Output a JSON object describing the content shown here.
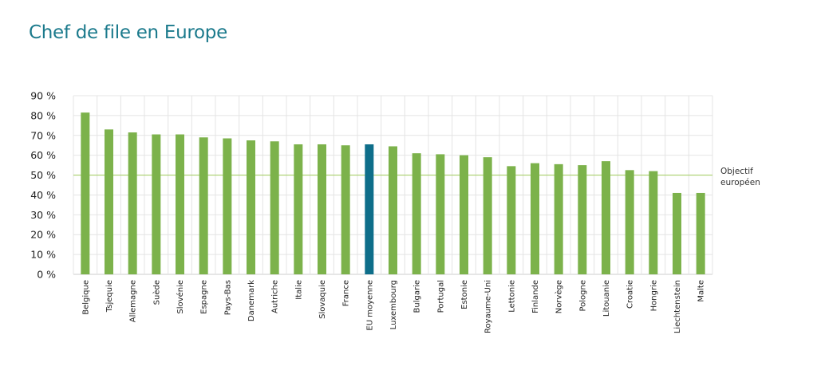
{
  "colors": {
    "title": "#1b7a8c",
    "bar": "#7cb24b",
    "highlight": "#0e6e8a",
    "target_line": "#a9cf6c",
    "grid": "#e4e4e4",
    "axis": "#cccccc"
  },
  "chart_data": {
    "type": "bar",
    "title": "Chef de file en Europe",
    "xlabel": "",
    "ylabel": "",
    "ylim": [
      0,
      90
    ],
    "y_ticks": [
      "0 %",
      "10 %",
      "20 %",
      "30 %",
      "40 %",
      "50 %",
      "60 %",
      "70 %",
      "80 %",
      "90 %"
    ],
    "y_tick_values": [
      0,
      10,
      20,
      30,
      40,
      50,
      60,
      70,
      80,
      90
    ],
    "grid": true,
    "categories": [
      "Belgique",
      "Tsjequie",
      "Allemagne",
      "Suède",
      "Slovénie",
      "Espagne",
      "Pays-Bas",
      "Danemark",
      "Autriche",
      "Italie",
      "Slovaquie",
      "France",
      "EU moyenne",
      "Luxembourg",
      "Bulgarie",
      "Portugal",
      "Estonie",
      "Royaume-Uni",
      "Lettonie",
      "Finlande",
      "Norvège",
      "Pologne",
      "Litouanie",
      "Croatie",
      "Hongrie",
      "Liechtenstein",
      "Malte"
    ],
    "values": [
      81.5,
      73,
      71.5,
      70.5,
      70.5,
      69,
      68.5,
      67.5,
      67,
      65.5,
      65.5,
      65,
      65.5,
      64.5,
      61,
      60.5,
      60,
      59,
      54.5,
      56,
      55.5,
      55,
      57,
      52.5,
      52,
      41,
      41
    ],
    "highlight_category": "EU moyenne",
    "target": {
      "value": 50,
      "label_line1": "Objectif",
      "label_line2": "européen"
    }
  }
}
